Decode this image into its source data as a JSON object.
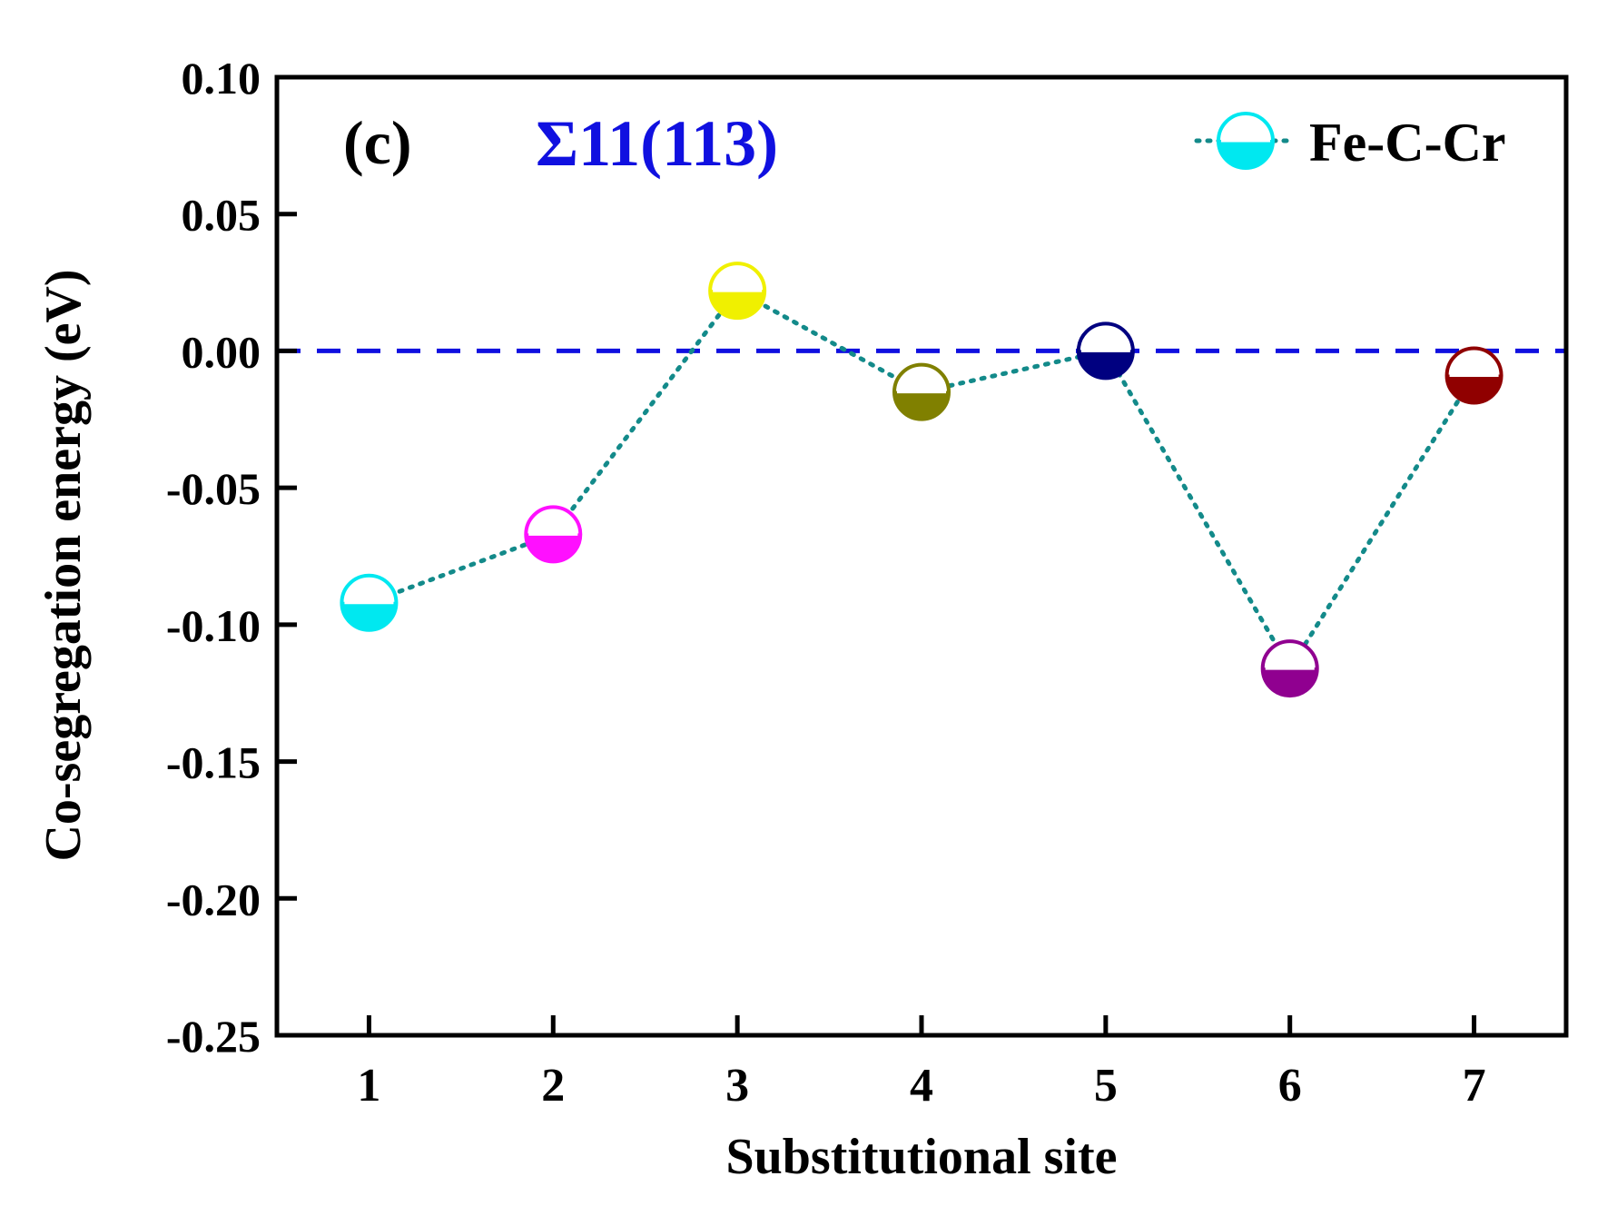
{
  "chart_data": {
    "type": "scatter",
    "panel_label": "(c)",
    "title": "Σ11(113)",
    "xlabel": "Substitutional site",
    "ylabel": "Co-segregation energy (eV)",
    "xlim": [
      0.5,
      7.5
    ],
    "ylim": [
      -0.25,
      0.1
    ],
    "x_ticks": [
      1,
      2,
      3,
      4,
      5,
      6,
      7
    ],
    "x_tick_labels": [
      "1",
      "2",
      "3",
      "4",
      "5",
      "6",
      "7"
    ],
    "y_ticks": [
      0.1,
      0.05,
      0.0,
      -0.05,
      -0.1,
      -0.15,
      -0.2,
      -0.25
    ],
    "y_tick_labels": [
      "0.10",
      "0.05",
      "0.00",
      "-0.05",
      "-0.10",
      "-0.15",
      "-0.20",
      "-0.25"
    ],
    "reference_line": {
      "y": 0.0,
      "style": "dashed",
      "color": "#1010e0"
    },
    "series": [
      {
        "name": "Fe-C-Cr",
        "line_style": "dotted",
        "line_color": "#138a8a",
        "legend_color": "#00e8f0",
        "x": [
          1,
          2,
          3,
          4,
          5,
          6,
          7
        ],
        "values": [
          -0.092,
          -0.067,
          0.022,
          -0.015,
          0.0,
          -0.116,
          -0.009
        ],
        "point_colors": [
          "#00e8f0",
          "#ff10ff",
          "#f0f000",
          "#808000",
          "#000080",
          "#900090",
          "#900000"
        ]
      }
    ],
    "legend_position": "top-right",
    "colors": {
      "axis": "#000000",
      "title": "#1010e0"
    }
  }
}
